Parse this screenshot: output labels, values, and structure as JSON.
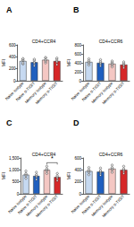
{
  "chart_data": [
    {
      "type": "bar",
      "title": "A",
      "subtitle": "CD4+CCR4",
      "y_label": "MFI",
      "categories": [
        "Naive isotype",
        "Naive α-TIGIT",
        "Memory isotype",
        "Memory α-TIGIT"
      ],
      "values": [
        330,
        310,
        350,
        330
      ],
      "colors": [
        "#c6d9f1",
        "#1f5fbf",
        "#f4c7c3",
        "#d62728"
      ],
      "points": [
        [
          280,
          300,
          340,
          360,
          370
        ],
        [
          250,
          290,
          310,
          340,
          360
        ],
        [
          300,
          330,
          350,
          380,
          390
        ],
        [
          270,
          310,
          330,
          360,
          380
        ]
      ],
      "ylim": [
        0,
        600
      ],
      "yticks": [
        0,
        200,
        400,
        600
      ],
      "grid": false
    },
    {
      "type": "bar",
      "title": "B",
      "subtitle": "CD4+CCR6",
      "y_label": "MFI",
      "categories": [
        "Naive isotype",
        "Naive α-TIGIT",
        "Memory isotype",
        "Memory α-TIGIT"
      ],
      "values": [
        420,
        400,
        380,
        360
      ],
      "colors": [
        "#c6d9f1",
        "#1f5fbf",
        "#f4c7c3",
        "#d62728"
      ],
      "points": [
        [
          350,
          390,
          420,
          450,
          490
        ],
        [
          330,
          370,
          400,
          430,
          470
        ],
        [
          310,
          350,
          380,
          410,
          440
        ],
        [
          290,
          330,
          360,
          390,
          420
        ]
      ],
      "ylim": [
        0,
        800
      ],
      "yticks": [
        0,
        200,
        400,
        600,
        800
      ],
      "grid": false
    },
    {
      "type": "bar",
      "title": "C",
      "subtitle": "CD4+CCR4",
      "y_label": "MFI",
      "categories": [
        "Naive isotype",
        "Naive α-TIGIT",
        "Memory isotype",
        "Memory α-TIGIT"
      ],
      "values": [
        800,
        750,
        1000,
        700
      ],
      "colors": [
        "#c6d9f1",
        "#1f5fbf",
        "#f4c7c3",
        "#d62728"
      ],
      "points": [
        [
          650,
          750,
          800,
          850,
          950
        ],
        [
          600,
          700,
          750,
          800,
          900
        ],
        [
          850,
          950,
          1000,
          1050,
          1150
        ],
        [
          550,
          650,
          700,
          750,
          850
        ]
      ],
      "annotations": [
        {
          "text": "*",
          "categories": [
            "Memory isotype",
            "Memory α-TIGIT"
          ]
        }
      ],
      "ylim": [
        0,
        1500
      ],
      "yticks": [
        0,
        500,
        1000,
        1500
      ],
      "grid": false
    },
    {
      "type": "bar",
      "title": "D",
      "subtitle": "CD4+CCR6",
      "y_label": "MFI",
      "categories": [
        "Naive isotype",
        "Naive α-TIGIT",
        "Memory isotype",
        "Memory α-TIGIT"
      ],
      "values": [
        380,
        370,
        420,
        400
      ],
      "colors": [
        "#c6d9f1",
        "#1f5fbf",
        "#f4c7c3",
        "#d62728"
      ],
      "points": [
        [
          320,
          360,
          380,
          400,
          440
        ],
        [
          310,
          350,
          370,
          390,
          430
        ],
        [
          360,
          400,
          420,
          440,
          480
        ],
        [
          340,
          380,
          400,
          420,
          460
        ]
      ],
      "ylim": [
        0,
        600
      ],
      "yticks": [
        0,
        200,
        400,
        600
      ],
      "grid": false
    }
  ]
}
